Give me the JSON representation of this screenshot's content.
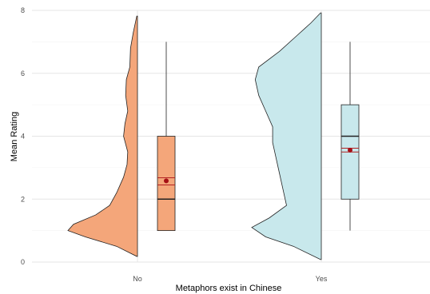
{
  "chart_data": {
    "type": "raincloud",
    "title": "",
    "xlabel": "Metaphors exist in Chinese",
    "ylabel": "Mean Rating",
    "ylim": [
      0,
      8
    ],
    "y_ticks": [
      0,
      2,
      4,
      6,
      8
    ],
    "categories": [
      "No",
      "Yes"
    ],
    "grid": true,
    "legend": "none",
    "groups": [
      {
        "category": "No",
        "color": "#f4a67a",
        "boxplot": {
          "min": 1.0,
          "q1": 1.0,
          "median": 2.0,
          "q3": 4.0,
          "max": 7.0
        },
        "mean": 2.58,
        "ci": [
          2.45,
          2.68
        ],
        "density": [
          [
            0.18,
            0.01
          ],
          [
            0.5,
            0.3
          ],
          [
            0.8,
            0.75
          ],
          [
            1.0,
            1.0
          ],
          [
            1.2,
            0.92
          ],
          [
            1.5,
            0.6
          ],
          [
            1.8,
            0.4
          ],
          [
            2.2,
            0.3
          ],
          [
            2.7,
            0.2
          ],
          [
            3.1,
            0.15
          ],
          [
            3.5,
            0.14
          ],
          [
            4.0,
            0.2
          ],
          [
            4.4,
            0.18
          ],
          [
            4.8,
            0.14
          ],
          [
            5.3,
            0.17
          ],
          [
            5.8,
            0.16
          ],
          [
            6.2,
            0.11
          ],
          [
            6.8,
            0.1
          ],
          [
            7.3,
            0.06
          ],
          [
            7.82,
            0.01
          ]
        ]
      },
      {
        "category": "Yes",
        "color": "#c8e8ec",
        "boxplot": {
          "min": 1.0,
          "q1": 2.0,
          "median": 4.0,
          "q3": 5.0,
          "max": 7.0
        },
        "mean": 3.56,
        "ci": [
          3.5,
          3.62
        ],
        "density": [
          [
            0.08,
            0.01
          ],
          [
            0.5,
            0.4
          ],
          [
            0.8,
            0.8
          ],
          [
            1.1,
            1.0
          ],
          [
            1.4,
            0.75
          ],
          [
            1.8,
            0.5
          ],
          [
            2.3,
            0.55
          ],
          [
            2.8,
            0.6
          ],
          [
            3.3,
            0.65
          ],
          [
            3.8,
            0.7
          ],
          [
            4.3,
            0.7
          ],
          [
            4.8,
            0.8
          ],
          [
            5.3,
            0.9
          ],
          [
            5.8,
            0.95
          ],
          [
            6.2,
            0.9
          ],
          [
            6.7,
            0.6
          ],
          [
            7.2,
            0.35
          ],
          [
            7.6,
            0.15
          ],
          [
            7.92,
            0.01
          ]
        ]
      }
    ]
  }
}
